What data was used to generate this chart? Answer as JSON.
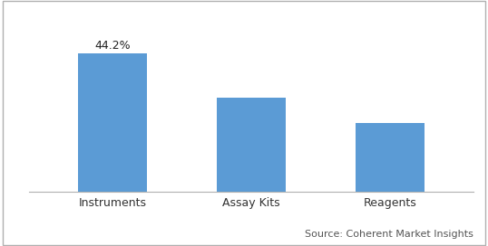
{
  "categories": [
    "Instruments",
    "Assay Kits",
    "Reagents"
  ],
  "values": [
    44.2,
    30.0,
    22.0
  ],
  "bar_color": "#5B9BD5",
  "annotation_label": "44.2%",
  "annotation_index": 0,
  "source_text": "Source: Coherent Market Insights",
  "bar_width": 0.5,
  "ylim": [
    0,
    55
  ],
  "annotation_fontsize": 9,
  "tick_fontsize": 9,
  "source_fontsize": 8,
  "background_color": "#ffffff",
  "spine_color": "#b0b0b0",
  "border_color": "#b0b0b0"
}
